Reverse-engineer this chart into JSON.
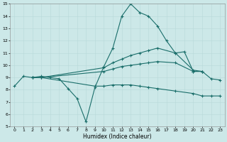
{
  "xlabel": "Humidex (Indice chaleur)",
  "bg_color": "#cce8e8",
  "line_color": "#1a6e6a",
  "xlim": [
    -0.5,
    23.5
  ],
  "ylim": [
    5,
    15
  ],
  "xticks": [
    0,
    1,
    2,
    3,
    4,
    5,
    6,
    7,
    8,
    9,
    10,
    11,
    12,
    13,
    14,
    15,
    16,
    17,
    18,
    19,
    20,
    21,
    22,
    23
  ],
  "yticks": [
    5,
    6,
    7,
    8,
    9,
    10,
    11,
    12,
    13,
    14,
    15
  ],
  "series1_x": [
    0,
    1,
    2,
    3,
    4,
    5,
    6,
    7,
    8,
    9,
    10,
    11,
    12,
    13,
    14,
    15,
    16,
    17,
    18,
    19,
    20,
    21
  ],
  "series1_y": [
    8.3,
    9.1,
    9.0,
    9.1,
    9.0,
    8.9,
    8.1,
    7.3,
    5.4,
    8.2,
    9.9,
    11.4,
    14.0,
    15.0,
    14.3,
    14.0,
    13.2,
    12.0,
    11.0,
    11.1,
    9.5,
    9.5
  ],
  "series2_x": [
    2,
    3,
    10,
    11,
    12,
    13,
    14,
    15,
    16,
    18,
    20,
    21
  ],
  "series2_y": [
    9.0,
    9.0,
    9.8,
    10.2,
    10.5,
    10.8,
    11.0,
    11.2,
    11.4,
    11.0,
    9.6,
    9.5
  ],
  "series3_x": [
    2,
    3,
    10,
    11,
    12,
    13,
    14,
    15,
    16,
    18,
    20,
    21,
    22,
    23
  ],
  "series3_y": [
    9.0,
    9.0,
    9.5,
    9.7,
    9.9,
    10.0,
    10.1,
    10.2,
    10.3,
    10.2,
    9.5,
    9.5,
    8.9,
    8.8
  ],
  "series4_x": [
    2,
    3,
    9,
    10,
    11,
    12,
    13,
    14,
    15,
    16,
    18,
    20,
    21,
    22,
    23
  ],
  "series4_y": [
    9.0,
    9.0,
    8.3,
    8.3,
    8.4,
    8.4,
    8.4,
    8.3,
    8.2,
    8.1,
    7.9,
    7.7,
    7.5,
    7.5,
    7.5
  ]
}
